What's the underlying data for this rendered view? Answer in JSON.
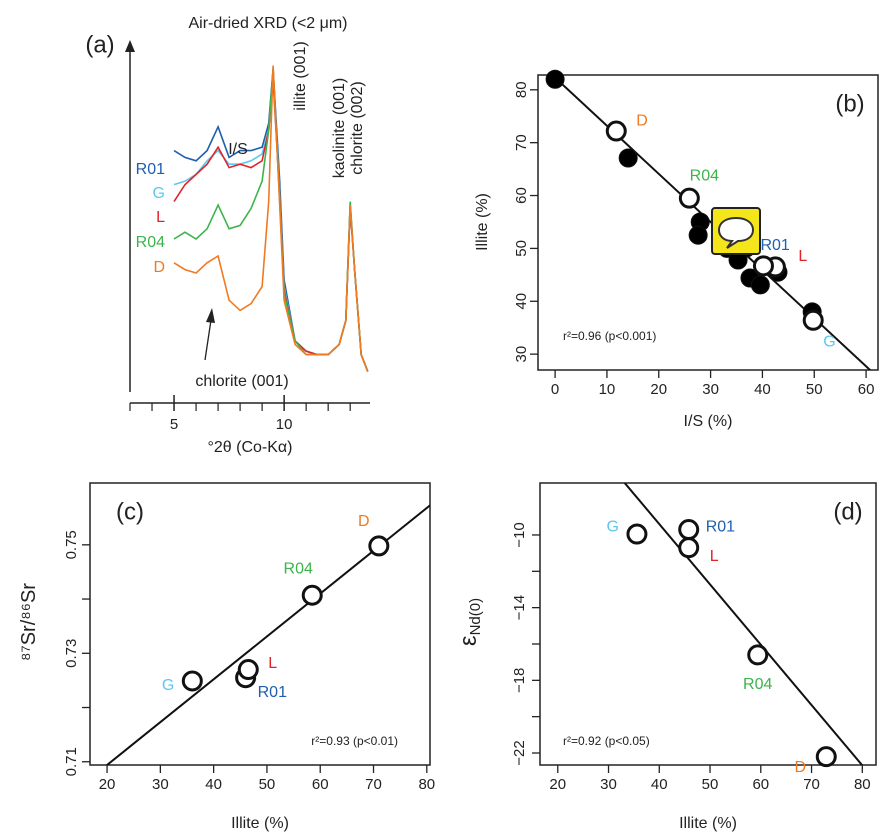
{
  "chart_data": [
    {
      "type": "line",
      "panel": "(a)",
      "title": "Air-dried XRD (<2 μm)",
      "x_label": "°2θ (Co-Kα)",
      "x": [
        5,
        5.5,
        6,
        6.5,
        7,
        7.5,
        8,
        8.5,
        9,
        9.3,
        9.5,
        9.8,
        10,
        10.5,
        11,
        11.5,
        12,
        12.5,
        12.8,
        13,
        13.2,
        13.5,
        13.8
      ],
      "xlim": [
        3,
        13.9
      ],
      "ylim": [
        0,
        100
      ],
      "xticks": [
        5,
        10
      ],
      "xminor_ticks": [
        3,
        4,
        6,
        7,
        8,
        9,
        11,
        12,
        13
      ],
      "series": [
        {
          "name": "R01",
          "color": "#1f5fb0",
          "values": [
            71,
            69,
            68,
            71,
            78,
            69,
            71,
            71,
            72,
            79,
            95,
            62,
            33,
            15,
            12,
            11,
            11,
            14,
            21,
            55,
            36,
            11,
            6
          ]
        },
        {
          "name": "G",
          "color": "#5bc8f0",
          "values": [
            61,
            62,
            64,
            68,
            71,
            67,
            67,
            68,
            70,
            77,
            93,
            59,
            31,
            15,
            12,
            11,
            11,
            14,
            21,
            55,
            36,
            11,
            6
          ]
        },
        {
          "name": "L",
          "color": "#e0242a",
          "values": [
            56,
            61,
            64,
            67,
            72,
            66,
            67,
            66,
            68,
            77,
            92,
            58,
            30,
            15,
            12,
            11,
            11,
            14,
            21,
            54,
            36,
            11,
            6
          ]
        },
        {
          "name": "R04",
          "color": "#3cb44b",
          "values": [
            45,
            47,
            45,
            48,
            55,
            48,
            49,
            54,
            62,
            77,
            95,
            56,
            29,
            15,
            11,
            11,
            11,
            14,
            21,
            56,
            36,
            11,
            6
          ]
        },
        {
          "name": "D",
          "color": "#f07a22",
          "values": [
            38,
            36,
            35,
            38,
            40,
            27,
            24,
            26,
            31,
            56,
            96,
            55,
            27,
            14,
            11,
            11,
            11,
            14,
            21,
            55,
            36,
            11,
            6
          ]
        }
      ],
      "annotations": [
        "I/S",
        "illite (001)",
        "kaolinite (001)",
        "chlorite (002)",
        "chlorite (001)"
      ]
    },
    {
      "type": "scatter",
      "panel": "(b)",
      "x_label": "I/S (%)",
      "y_label": "Illite (%)",
      "xlim": [
        -3.3,
        62.3
      ],
      "ylim": [
        27,
        82.8
      ],
      "xticks": [
        0,
        10,
        20,
        30,
        40,
        50,
        60
      ],
      "yticks": [
        30,
        40,
        50,
        60,
        70,
        80
      ],
      "series": [
        {
          "fill": "#000000",
          "x": [
            0,
            14.1,
            28,
            27.6,
            33.2,
            36.9,
            35.3,
            37.6,
            39.6,
            42.1,
            43,
            49.6
          ],
          "y": [
            82,
            67.1,
            55,
            52.5,
            50,
            50.1,
            47.8,
            44.4,
            43.1,
            46.3,
            45.5,
            38
          ]
        },
        {
          "fill": "#ffffff",
          "labels": [
            "L",
            "D",
            "R04",
            "R01",
            "G"
          ],
          "colors": [
            "#e0242a",
            "#f07a22",
            "#3cb44b",
            "#1f5fb0",
            "#5bc8f0"
          ],
          "x": [
            42.5,
            11.8,
            25.9,
            40.2,
            49.8
          ],
          "y": [
            46.5,
            72.2,
            59.5,
            46.7,
            36.4
          ]
        }
      ],
      "fit": {
        "slope": -0.91,
        "intercept": 82.3
      },
      "annotation": "r²=0.96 (p<0.001)"
    },
    {
      "type": "scatter",
      "panel": "(c)",
      "x_label": "Illite (%)",
      "y_label": "⁸⁷Sr/⁸⁶Sr",
      "xlim": [
        16.8,
        80.6
      ],
      "ylim": [
        0.7094,
        0.7614
      ],
      "xticks": [
        20,
        30,
        40,
        50,
        60,
        70,
        80
      ],
      "yticks": [
        0.71,
        0.73,
        0.75
      ],
      "yminor_ticks": [
        0.72,
        0.74
      ],
      "series": [
        {
          "fill": "#ffffff",
          "labels": [
            "G",
            "R01",
            "L",
            "R04",
            "D"
          ],
          "colors": [
            "#5bc8f0",
            "#1f5fb0",
            "#e0242a",
            "#3cb44b",
            "#f07a22"
          ],
          "x": [
            36,
            46,
            46.5,
            58.5,
            71
          ],
          "y": [
            0.7249,
            0.7255,
            0.727,
            0.7407,
            0.7498
          ]
        }
      ],
      "fit": {
        "slope": 0.00079,
        "intercept": 0.6936
      },
      "annotation": "r²=0.93 (p<0.01)"
    },
    {
      "type": "scatter",
      "panel": "(d)",
      "x_label": "Illite (%)",
      "y_label": "ε",
      "y_label_subscript": "Nd(0)",
      "xlim": [
        16.5,
        82.7
      ],
      "ylim": [
        -22.66,
        -7.14
      ],
      "xticks": [
        20,
        30,
        40,
        50,
        60,
        70,
        80
      ],
      "yticks": [
        {
          "value": -10,
          "label": "−10"
        },
        {
          "value": -14,
          "label": "−14"
        },
        {
          "value": -18,
          "label": "−18"
        },
        {
          "value": -22,
          "label": "−22"
        }
      ],
      "yminor_ticks": [
        -12,
        -16,
        -20
      ],
      "series": [
        {
          "fill": "#ffffff",
          "labels": [
            "G",
            "R01",
            "L",
            "R04",
            "D"
          ],
          "colors": [
            "#5bc8f0",
            "#1f5fb0",
            "#e0242a",
            "#3cb44b",
            "#f07a22"
          ],
          "x": [
            35.6,
            45.8,
            45.8,
            59.4,
            72.9
          ],
          "y": [
            -9.95,
            -9.7,
            -10.7,
            -16.6,
            -22.2
          ]
        }
      ],
      "fit": {
        "slope": -0.332,
        "intercept": 3.88
      },
      "annotation": "r²=0.92 (p<0.05)"
    }
  ]
}
